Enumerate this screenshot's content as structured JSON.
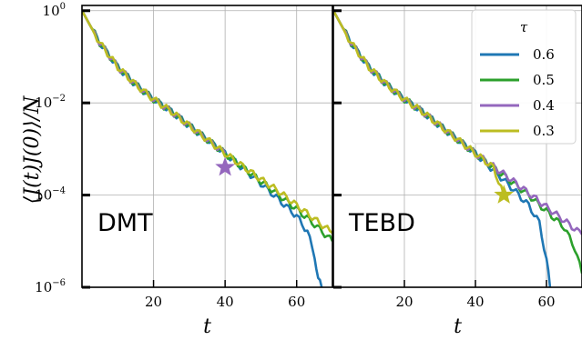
{
  "chart_data": {
    "type": "line",
    "ylabel": "⟨J(t)J(0)⟩/N",
    "xlabel": "t",
    "yscale": "log",
    "ylim": [
      1e-06,
      1.3
    ],
    "grid": true,
    "shared_y": true,
    "y_ticks": [
      {
        "value": 1e-06,
        "base": "10",
        "exp": "−6"
      },
      {
        "value": 0.0001,
        "base": "10",
        "exp": "−4"
      },
      {
        "value": 0.01,
        "base": "10",
        "exp": "−2"
      },
      {
        "value": 1,
        "base": "10",
        "exp": "0"
      }
    ],
    "legend": {
      "title": "τ",
      "position": "top-right of right panel",
      "entries": [
        {
          "label": "0.6",
          "color": "#1f77b4"
        },
        {
          "label": "0.5",
          "color": "#2ca02c"
        },
        {
          "label": "0.4",
          "color": "#9467bd"
        },
        {
          "label": "0.3",
          "color": "#bcbd22"
        }
      ]
    },
    "panels": [
      {
        "name": "DMT",
        "xlim": [
          0,
          70
        ],
        "x_ticks": [
          20,
          40,
          60
        ],
        "marker": {
          "shape": "star",
          "x": 40,
          "y": 0.0004,
          "color": "#9467bd"
        },
        "series": [
          {
            "name": "0.6",
            "color": "#1f77b4",
            "points": [
              [
                0,
                1
              ],
              [
                5,
                0.2
              ],
              [
                10,
                0.06
              ],
              [
                15,
                0.025
              ],
              [
                20,
                0.012
              ],
              [
                25,
                0.0065
              ],
              [
                30,
                0.0032
              ],
              [
                35,
                0.0016
              ],
              [
                40,
                0.0008
              ],
              [
                45,
                0.00038
              ],
              [
                50,
                0.00018
              ],
              [
                55,
                8e-05
              ],
              [
                60,
                3.5e-05
              ],
              [
                63,
                1.6e-05
              ],
              [
                65,
                5e-06
              ],
              [
                66,
                1.5e-06
              ],
              [
                67,
                1e-06
              ]
            ]
          },
          {
            "name": "0.5",
            "color": "#2ca02c",
            "points": [
              [
                0,
                1
              ],
              [
                5,
                0.2
              ],
              [
                10,
                0.06
              ],
              [
                15,
                0.025
              ],
              [
                20,
                0.012
              ],
              [
                25,
                0.0065
              ],
              [
                30,
                0.0032
              ],
              [
                35,
                0.0016
              ],
              [
                40,
                0.0008
              ],
              [
                45,
                0.0004
              ],
              [
                50,
                0.0002
              ],
              [
                55,
                0.0001
              ],
              [
                60,
                5e-05
              ],
              [
                65,
                2.3e-05
              ],
              [
                70,
                1e-05
              ]
            ]
          },
          {
            "name": "0.4",
            "color": "#9467bd",
            "points": [
              [
                0,
                1
              ],
              [
                5,
                0.2
              ],
              [
                10,
                0.06
              ],
              [
                15,
                0.025
              ],
              [
                20,
                0.012
              ],
              [
                25,
                0.0065
              ],
              [
                30,
                0.0032
              ],
              [
                35,
                0.0016
              ],
              [
                40,
                0.0008
              ]
            ]
          },
          {
            "name": "0.3",
            "color": "#bcbd22",
            "points": [
              [
                0,
                1
              ],
              [
                5,
                0.2
              ],
              [
                10,
                0.06
              ],
              [
                15,
                0.025
              ],
              [
                20,
                0.012
              ],
              [
                25,
                0.0065
              ],
              [
                30,
                0.0032
              ],
              [
                35,
                0.0016
              ],
              [
                40,
                0.0008
              ],
              [
                45,
                0.00042
              ],
              [
                50,
                0.00022
              ],
              [
                55,
                0.00012
              ],
              [
                60,
                6e-05
              ],
              [
                65,
                3e-05
              ],
              [
                70,
                1.5e-05
              ]
            ]
          }
        ]
      },
      {
        "name": "TEBD",
        "xlim": [
          0,
          70
        ],
        "x_ticks": [
          20,
          40,
          60
        ],
        "marker": {
          "shape": "star",
          "x": 48,
          "y": 0.0001,
          "color": "#bcbd22"
        },
        "series": [
          {
            "name": "0.6",
            "color": "#1f77b4",
            "points": [
              [
                0,
                1
              ],
              [
                5,
                0.2
              ],
              [
                10,
                0.06
              ],
              [
                15,
                0.025
              ],
              [
                20,
                0.012
              ],
              [
                25,
                0.0065
              ],
              [
                30,
                0.0032
              ],
              [
                35,
                0.0016
              ],
              [
                40,
                0.0008
              ],
              [
                45,
                0.00035
              ],
              [
                50,
                0.00015
              ],
              [
                55,
                6e-05
              ],
              [
                58,
                2.5e-05
              ],
              [
                60,
                4e-06
              ],
              [
                61,
                1e-06
              ]
            ]
          },
          {
            "name": "0.5",
            "color": "#2ca02c",
            "points": [
              [
                0,
                1
              ],
              [
                5,
                0.2
              ],
              [
                10,
                0.06
              ],
              [
                15,
                0.025
              ],
              [
                20,
                0.012
              ],
              [
                25,
                0.0065
              ],
              [
                30,
                0.0032
              ],
              [
                35,
                0.0016
              ],
              [
                40,
                0.0008
              ],
              [
                45,
                0.0004
              ],
              [
                50,
                0.0002
              ],
              [
                55,
                0.0001
              ],
              [
                60,
                4.5e-05
              ],
              [
                65,
                2e-05
              ],
              [
                68,
                7e-06
              ],
              [
                70,
                2e-06
              ]
            ]
          },
          {
            "name": "0.4",
            "color": "#9467bd",
            "points": [
              [
                0,
                1
              ],
              [
                5,
                0.2
              ],
              [
                10,
                0.06
              ],
              [
                15,
                0.025
              ],
              [
                20,
                0.012
              ],
              [
                25,
                0.0065
              ],
              [
                30,
                0.0032
              ],
              [
                35,
                0.0016
              ],
              [
                40,
                0.0008
              ],
              [
                45,
                0.00042
              ],
              [
                50,
                0.00022
              ],
              [
                55,
                0.00011
              ],
              [
                60,
                5.5e-05
              ],
              [
                65,
                2.8e-05
              ],
              [
                70,
                1.4e-05
              ]
            ]
          },
          {
            "name": "0.3",
            "color": "#bcbd22",
            "points": [
              [
                0,
                1
              ],
              [
                5,
                0.2
              ],
              [
                10,
                0.06
              ],
              [
                15,
                0.025
              ],
              [
                20,
                0.012
              ],
              [
                25,
                0.0065
              ],
              [
                30,
                0.0032
              ],
              [
                35,
                0.0016
              ],
              [
                40,
                0.0008
              ],
              [
                45,
                0.0004
              ],
              [
                48,
                0.0001
              ]
            ]
          }
        ]
      }
    ]
  }
}
